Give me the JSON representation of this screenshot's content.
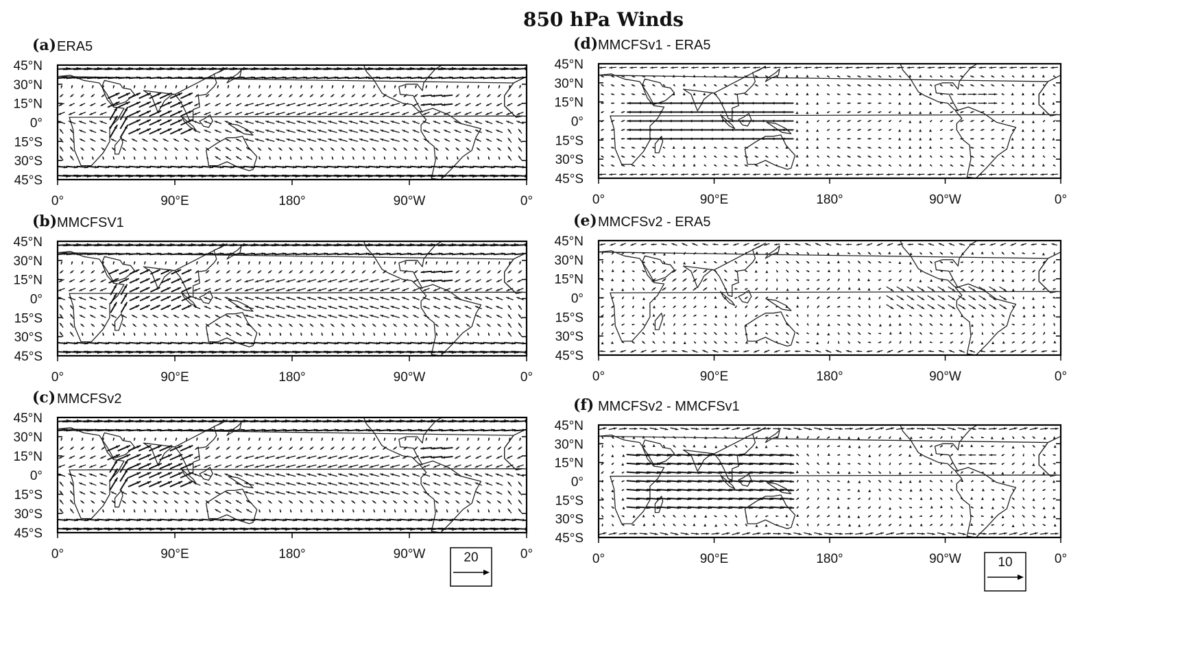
{
  "title": "850 hPa Winds",
  "chart_data": [
    {
      "type": "vector",
      "id": "a",
      "letter": "(a)",
      "label": "ERA5",
      "field": "absolute",
      "xticks": [
        "0°",
        "90°E",
        "180°",
        "90°W",
        "0°"
      ],
      "yticks": [
        "45°N",
        "30°N",
        "15°N",
        "0°",
        "15°S",
        "30°S",
        "45°S"
      ],
      "xlim": [
        0,
        360
      ],
      "ylim": [
        -45,
        45
      ],
      "reference_vector": null
    },
    {
      "type": "vector",
      "id": "b",
      "letter": "(b)",
      "label": "MMCFSV1",
      "field": "absolute",
      "xticks": [
        "0°",
        "90°E",
        "180°",
        "90°W",
        "0°"
      ],
      "yticks": [
        "45°N",
        "30°N",
        "15°N",
        "0°",
        "15°S",
        "30°S",
        "45°S"
      ],
      "xlim": [
        0,
        360
      ],
      "ylim": [
        -45,
        45
      ],
      "reference_vector": null
    },
    {
      "type": "vector",
      "id": "c",
      "letter": "(c)",
      "label": "MMCFSv2",
      "field": "absolute",
      "xticks": [
        "0°",
        "90°E",
        "180°",
        "90°W",
        "0°"
      ],
      "yticks": [
        "45°N",
        "30°N",
        "15°N",
        "0°",
        "15°S",
        "30°S",
        "45°S"
      ],
      "xlim": [
        0,
        360
      ],
      "ylim": [
        -45,
        45
      ],
      "reference_vector": "20"
    },
    {
      "type": "vector",
      "id": "d",
      "letter": "(d)",
      "label": "MMCFSv1 - ERA5",
      "field": "difference",
      "xticks": [
        "0°",
        "90°E",
        "180°",
        "90°W",
        "0°"
      ],
      "yticks": [
        "45°N",
        "30°N",
        "15°N",
        "0°",
        "15°S",
        "30°S",
        "45°S"
      ],
      "xlim": [
        0,
        360
      ],
      "ylim": [
        -45,
        45
      ],
      "reference_vector": null
    },
    {
      "type": "vector",
      "id": "e",
      "letter": "(e)",
      "label": "MMCFSv2 - ERA5",
      "field": "difference",
      "xticks": [
        "0°",
        "90°E",
        "180°",
        "90°W",
        "0°"
      ],
      "yticks": [
        "45°N",
        "30°N",
        "15°N",
        "0°",
        "15°S",
        "30°S",
        "45°S"
      ],
      "xlim": [
        0,
        360
      ],
      "ylim": [
        -45,
        45
      ],
      "reference_vector": null
    },
    {
      "type": "vector",
      "id": "f",
      "letter": "(f)",
      "label": "MMCFSv2 - MMCFSv1",
      "field": "difference",
      "xticks": [
        "0°",
        "90°E",
        "180°",
        "90°W",
        "0°"
      ],
      "yticks": [
        "45°N",
        "30°N",
        "15°N",
        "0°",
        "15°S",
        "30°S",
        "45°S"
      ],
      "xlim": [
        0,
        360
      ],
      "ylim": [
        -45,
        45
      ],
      "reference_vector": "10"
    }
  ]
}
